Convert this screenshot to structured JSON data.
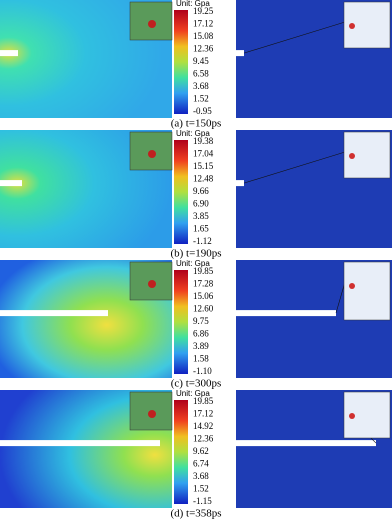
{
  "panels": [
    {
      "caption": "(a) t=150ps",
      "unit": "Unit: Gpa",
      "scale": [
        "19.25",
        "17.12",
        "15.08",
        "12.36",
        "9.45",
        "6.58",
        "3.68",
        "1.52",
        "-0.95"
      ]
    },
    {
      "caption": "(b) t=190ps",
      "unit": "Unit: Gpa",
      "scale": [
        "19.38",
        "17.04",
        "15.15",
        "12.48",
        "9.66",
        "6.90",
        "3.85",
        "1.65",
        "-1.12"
      ]
    },
    {
      "caption": "(c) t=300ps",
      "unit": "Unit: Gpa",
      "scale": [
        "19.85",
        "17.28",
        "15.06",
        "12.60",
        "9.75",
        "6.86",
        "3.89",
        "1.58",
        "-1.10"
      ]
    },
    {
      "caption": "(d) t=358ps",
      "unit": "Unit: Gpa",
      "scale": [
        "19.85",
        "17.12",
        "14.92",
        "12.36",
        "9.62",
        "6.74",
        "3.68",
        "1.52",
        "-1.15"
      ]
    }
  ]
}
